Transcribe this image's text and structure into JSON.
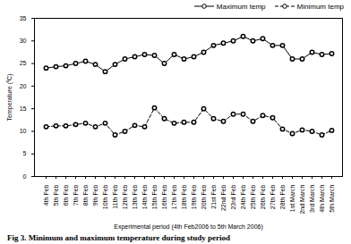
{
  "chart_data": {
    "type": "line",
    "title": "Fig 3. Minimum and maximum temperature during study period",
    "x_label": "Experimental period (4th Feb2006 to 5th March 2006)",
    "y_label": "Temperature (⁰C)",
    "categories": [
      "4th Feb",
      "5th Feb",
      "6th Feb",
      "7th Feb",
      "8th Feb",
      "9th Feb",
      "10th Feb",
      "11th Feb",
      "12th Feb",
      "13th Feb",
      "14th Feb",
      "15th Feb",
      "16th Feb",
      "17th Feb",
      "18th Feb",
      "19th Feb",
      "20th Feb",
      "21st Feb",
      "22nd Feb",
      "23rd Feb",
      "24th Feb",
      "25th Feb",
      "26th Feb",
      "27th Feb",
      "28th Feb",
      "1st March",
      "2nd March",
      "3rd March",
      "4th March",
      "5th March"
    ],
    "series": [
      {
        "name": "Maximum temp",
        "color": "#000000",
        "marker": "circle",
        "line_style": "solid",
        "values": [
          24,
          24.3,
          24.5,
          25,
          25.5,
          24.8,
          23.2,
          24.8,
          26,
          26.5,
          27,
          26.8,
          25,
          27,
          26,
          26.5,
          27.5,
          29,
          29.5,
          30,
          31,
          30,
          30.5,
          29,
          29,
          26,
          26,
          27.5,
          27,
          27.2
        ]
      },
      {
        "name": "Minimum temp",
        "color": "#000000",
        "marker": "circle",
        "line_style": "dashed",
        "values": [
          11,
          11.2,
          11.2,
          11.5,
          11.8,
          11,
          11.8,
          9.2,
          10,
          11.3,
          11,
          15.2,
          12.8,
          11.8,
          12,
          12,
          15,
          12.8,
          12.2,
          13.8,
          13.8,
          12.2,
          13.5,
          13,
          10.5,
          9.5,
          10.3,
          10,
          9.2,
          10.2
        ]
      }
    ],
    "ylim": [
      0,
      35
    ],
    "yticks": [
      0,
      5,
      10,
      15,
      20,
      25,
      30,
      35
    ],
    "grid": false,
    "legend": "top-right"
  }
}
